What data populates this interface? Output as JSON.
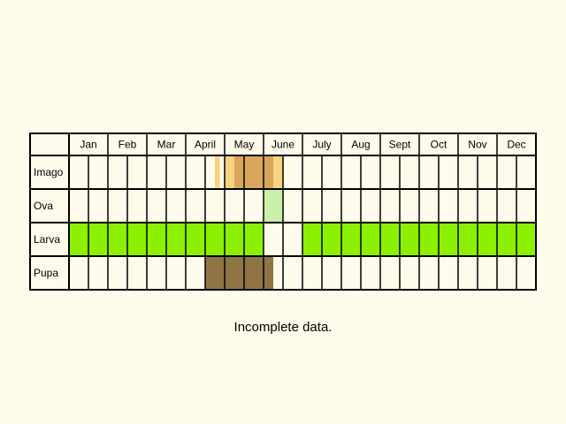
{
  "chart_data": {
    "type": "table",
    "title": "",
    "months": [
      "Jan",
      "Feb",
      "Mar",
      "April",
      "May",
      "June",
      "July",
      "Aug",
      "Sept",
      "Oct",
      "Nov",
      "Dec"
    ],
    "rows": [
      "Imago",
      "Ova",
      "Larva",
      "Pupa"
    ],
    "periods_per_month": 2,
    "colors": {
      "background": "#fffbea",
      "grid": "#000000",
      "imago_light": "#f7d27f",
      "imago_dark": "#d9a65b",
      "ova": "#c8f0a8",
      "larva": "#8cf000",
      "pupa": "#8f7544"
    },
    "fills": [
      {
        "row": "Imago",
        "start": 7.5,
        "end": 7.75,
        "color": "imago_light"
      },
      {
        "row": "Imago",
        "start": 8.0,
        "end": 8.5,
        "color": "imago_light"
      },
      {
        "row": "Imago",
        "start": 8.5,
        "end": 10.5,
        "color": "imago_dark"
      },
      {
        "row": "Imago",
        "start": 10.5,
        "end": 11.0,
        "color": "imago_light"
      },
      {
        "row": "Ova",
        "start": 10.0,
        "end": 11.0,
        "color": "ova"
      },
      {
        "row": "Larva",
        "start": 0.0,
        "end": 10.0,
        "color": "larva"
      },
      {
        "row": "Larva",
        "start": 12.0,
        "end": 24.0,
        "color": "larva"
      },
      {
        "row": "Pupa",
        "start": 7.0,
        "end": 10.5,
        "color": "pupa"
      }
    ]
  },
  "note": "Incomplete data."
}
